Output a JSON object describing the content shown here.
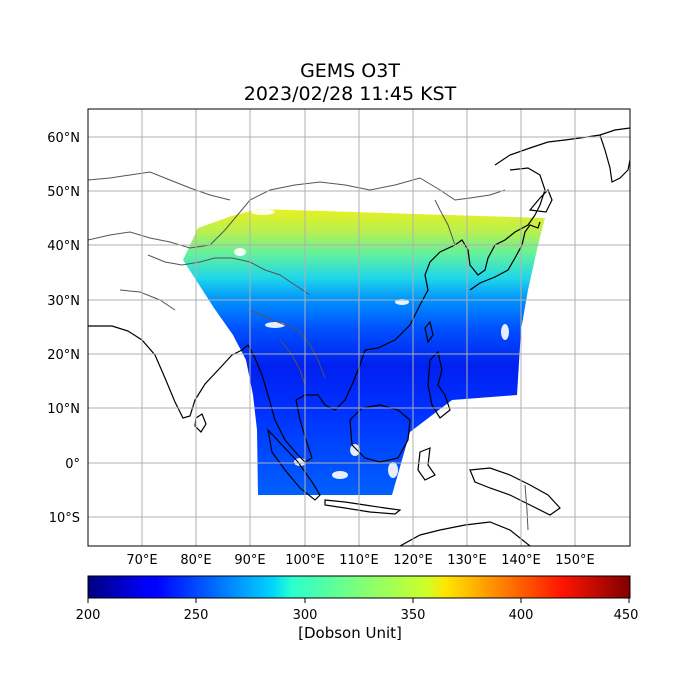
{
  "title": "GEMS O3T",
  "subtitle": "2023/02/28 11:45 KST",
  "map": {
    "lat_ticks": [
      "60°N",
      "50°N",
      "40°N",
      "30°N",
      "20°N",
      "10°N",
      "0°",
      "10°S"
    ],
    "lon_ticks": [
      "70°E",
      "80°E",
      "90°E",
      "100°E",
      "110°E",
      "120°E",
      "130°E",
      "140°E",
      "150°E"
    ],
    "lon_range": [
      60,
      160
    ],
    "lat_range": [
      -15,
      65
    ],
    "grid": true,
    "data_color_scale": "jet"
  },
  "colorbar": {
    "min": 200,
    "max": 450,
    "ticks": [
      "200",
      "250",
      "300",
      "350",
      "400",
      "450"
    ],
    "label": "[Dobson Unit]"
  }
}
